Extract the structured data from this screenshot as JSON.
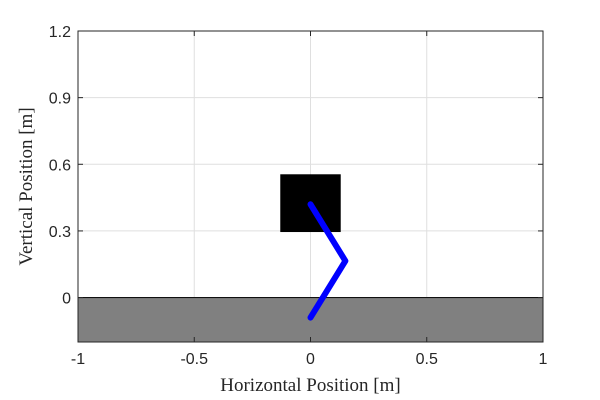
{
  "chart_data": {
    "type": "scatter",
    "xlabel": "Horizontal Position [m]",
    "ylabel": "Vertical Position [m]",
    "xlim": [
      -1,
      1
    ],
    "ylim": [
      -0.2,
      1.2
    ],
    "x_ticks": [
      -1,
      -0.5,
      0,
      0.5,
      1
    ],
    "x_tick_labels": [
      "-1",
      "-0.5",
      "0",
      "0.5",
      "1"
    ],
    "y_ticks": [
      0,
      0.3,
      0.6,
      0.9,
      1.2
    ],
    "y_tick_labels": [
      "0",
      "0.3",
      "0.6",
      "0.9",
      "1.2"
    ],
    "grid": true,
    "ground": {
      "x": [
        -1,
        1
      ],
      "y": [
        -0.2,
        0
      ],
      "color": "#808080"
    },
    "body": {
      "x": [
        -0.13,
        0.13
      ],
      "y": [
        0.295,
        0.555
      ],
      "color": "#000000"
    },
    "legs": {
      "color": "#0000ff",
      "points": [
        {
          "x": 0.0,
          "y": 0.42
        },
        {
          "x": 0.15,
          "y": 0.165
        },
        {
          "x": 0.0,
          "y": -0.09
        }
      ]
    }
  }
}
